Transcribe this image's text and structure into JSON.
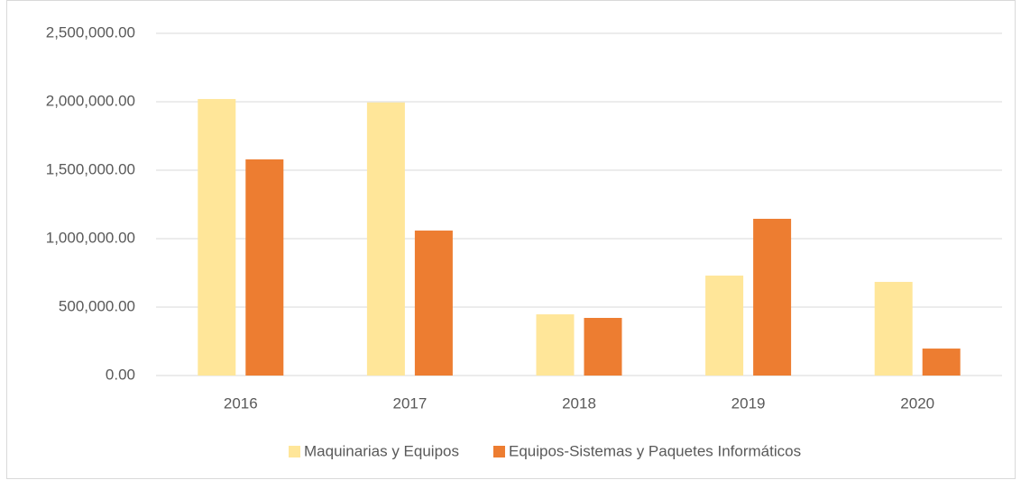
{
  "chart_data": {
    "type": "bar",
    "categories": [
      "2016",
      "2017",
      "2018",
      "2019",
      "2020"
    ],
    "series": [
      {
        "name": "Maquinarias y Equipos",
        "color": "#ffe699",
        "values": [
          2020000,
          1995000,
          447000,
          730000,
          684000
        ]
      },
      {
        "name": "Equipos-Sistemas y Paquetes Informáticos",
        "color": "#ed7d31",
        "values": [
          1579000,
          1059000,
          421000,
          1145000,
          197000
        ]
      }
    ],
    "ylim": [
      0,
      2500000
    ],
    "yticks": [
      {
        "value": 0,
        "label": "0.00"
      },
      {
        "value": 500000,
        "label": "500,000.00"
      },
      {
        "value": 1000000,
        "label": "1,000,000.00"
      },
      {
        "value": 1500000,
        "label": "1,500,000.00"
      },
      {
        "value": 2000000,
        "label": "2,000,000.00"
      },
      {
        "value": 2500000,
        "label": "2,500,000.00"
      }
    ],
    "grid": true,
    "legend": "bottom"
  }
}
